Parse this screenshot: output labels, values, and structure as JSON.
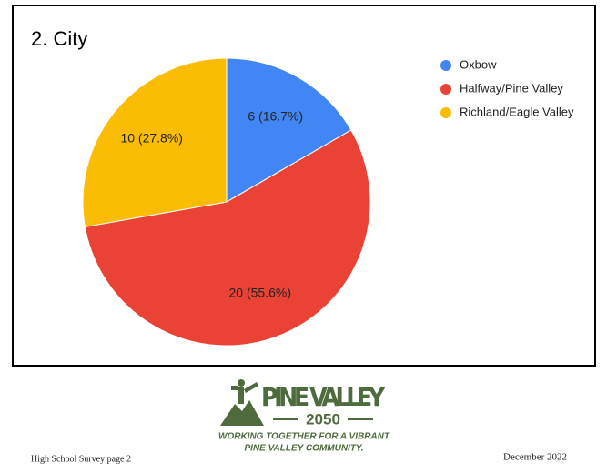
{
  "chart_data": {
    "type": "pie",
    "title": "2. City",
    "categories": [
      "Oxbow",
      "Halfway/Pine Valley",
      "Richland/Eagle Valley"
    ],
    "values": [
      6,
      20,
      10
    ],
    "value_labels": [
      "6 (16.7%)",
      "20 (55.6%)",
      "10 (27.8%)"
    ],
    "colors": [
      "#4285f4",
      "#ea4335",
      "#fbbc04"
    ],
    "legend": "right"
  },
  "logo": {
    "name": "PINE VALLEY",
    "year": "2050",
    "tagline_1": "WORKING TOGETHER FOR A VIBRANT",
    "tagline_2": "PINE VALLEY COMMUNITY."
  },
  "footer": {
    "left": "High School Survey page 2",
    "right": "December 2022"
  }
}
